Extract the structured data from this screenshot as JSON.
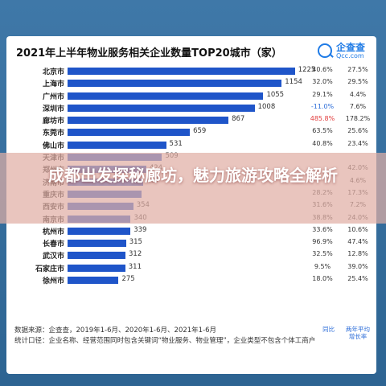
{
  "chart_data": {
    "type": "bar",
    "title": "2021年上半年物业服务相关企业数量TOP20城市（家）",
    "categories": [
      "北京市",
      "上海市",
      "广州市",
      "深圳市",
      "廊坊市",
      "东莞市",
      "佛山市",
      "天津市",
      "郑州市",
      "济南市",
      "重庆市",
      "西安市",
      "南京市",
      "杭州市",
      "长春市",
      "武汉市",
      "石家庄市",
      "徐州市"
    ],
    "values": [
      1225,
      1154,
      1055,
      1008,
      867,
      659,
      531,
      509,
      424,
      407,
      397,
      354,
      340,
      339,
      315,
      312,
      311,
      275
    ],
    "value_labels": [
      "1225",
      "1154",
      "1055",
      "1008",
      "867",
      "659",
      "531",
      "509",
      "424",
      "407",
      "",
      "354",
      "340",
      "339",
      "315",
      "312",
      "311",
      "275"
    ],
    "yoy": [
      "40.6%",
      "32.0%",
      "29.1%",
      "-11.0%",
      "485.8%",
      "63.5%",
      "40.8%",
      "",
      "",
      "",
      "28.2%",
      "31.6%",
      "38.8%",
      "33.6%",
      "96.9%",
      "32.5%",
      "9.5%",
      "18.0%"
    ],
    "h2h": [
      "27.5%",
      "29.5%",
      "4.4%",
      "7.6%",
      "178.2%",
      "25.6%",
      "23.4%",
      "",
      "42.0%",
      "4.6%",
      "17.3%",
      "7.2%",
      "24.0%",
      "10.6%",
      "47.4%",
      "12.8%",
      "39.0%",
      "25.4%"
    ],
    "xlim": [
      0,
      1300
    ]
  },
  "header": {
    "logo_name": "企查查",
    "logo_domain": "Qcc.com"
  },
  "notes": {
    "source": "数据来源：企查查，2019年1-6月、2020年1-6月、2021年1-6月",
    "criteria": "统计口径：企业名称、经营范围同时包含关键词“物业服务、物业管理”，企业类型不包含个体工商户"
  },
  "legend": {
    "yoy_label": "同比",
    "h2h_label": "两年平均增长率"
  },
  "overlay": {
    "headline": "成都出发探秘廊坊，魅力旅游攻略全解析"
  },
  "colors": {
    "bar": "#1f55c9",
    "negative": "#e23b3b",
    "highlight": "#e23b3b",
    "accent": "#2b6cd8"
  }
}
